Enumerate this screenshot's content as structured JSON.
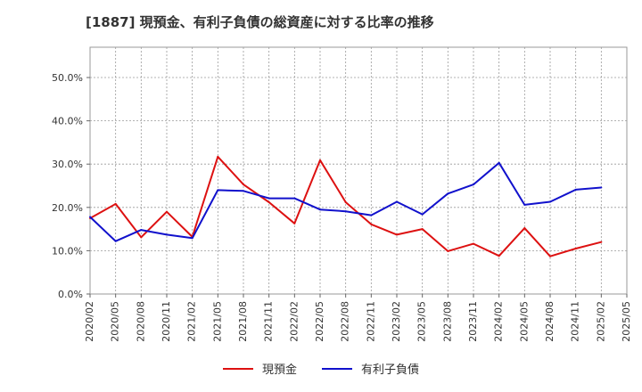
{
  "chart_data": {
    "type": "line",
    "title": "[1887]  現預金、有利子負債の総資産に対する比率の推移",
    "xlabel": "",
    "ylabel": "",
    "ylim": [
      0,
      0.57
    ],
    "yticks": [
      {
        "value": 0.0,
        "label": "0.0%"
      },
      {
        "value": 0.1,
        "label": "10.0%"
      },
      {
        "value": 0.2,
        "label": "20.0%"
      },
      {
        "value": 0.3,
        "label": "30.0%"
      },
      {
        "value": 0.4,
        "label": "40.0%"
      },
      {
        "value": 0.5,
        "label": "50.0%"
      }
    ],
    "grid": true,
    "legend_position": "bottom",
    "categories": [
      "2020/02",
      "2020/05",
      "2020/08",
      "2020/11",
      "2021/02",
      "2021/05",
      "2021/08",
      "2021/11",
      "2022/02",
      "2022/05",
      "2022/08",
      "2022/11",
      "2023/02",
      "2023/05",
      "2023/08",
      "2023/11",
      "2024/02",
      "2024/05",
      "2024/08",
      "2024/11",
      "2025/02",
      "2025/05"
    ],
    "series": [
      {
        "name": "現預金",
        "color": "#dd1111",
        "values": [
          0.175,
          0.208,
          0.131,
          0.19,
          0.132,
          0.317,
          0.253,
          0.212,
          0.163,
          0.309,
          0.212,
          0.161,
          0.137,
          0.15,
          0.099,
          0.116,
          0.088,
          0.152,
          0.087,
          0.105,
          0.12,
          null
        ]
      },
      {
        "name": "有利子負債",
        "color": "#1111cc",
        "values": [
          0.178,
          0.122,
          0.148,
          0.137,
          0.129,
          0.24,
          0.238,
          0.221,
          0.221,
          0.195,
          0.191,
          0.182,
          0.213,
          0.184,
          0.232,
          0.253,
          0.303,
          0.206,
          0.213,
          0.241,
          0.246,
          null
        ]
      }
    ]
  }
}
